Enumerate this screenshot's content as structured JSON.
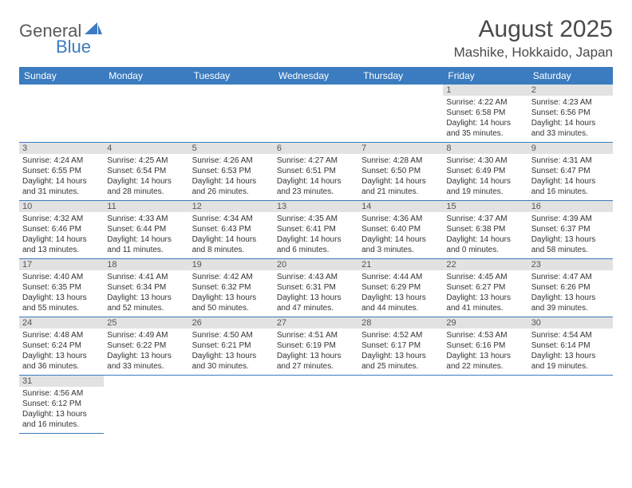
{
  "logo": {
    "text_general": "General",
    "text_blue": "Blue",
    "shape_color": "#3b7bbf"
  },
  "title": "August 2025",
  "location": "Mashike, Hokkaido, Japan",
  "colors": {
    "header_bg": "#3b7bbf",
    "header_fg": "#ffffff",
    "daynum_bg": "#e2e2e2",
    "border": "#3b7bbf",
    "text": "#333333"
  },
  "weekdays": [
    "Sunday",
    "Monday",
    "Tuesday",
    "Wednesday",
    "Thursday",
    "Friday",
    "Saturday"
  ],
  "weeks": [
    [
      null,
      null,
      null,
      null,
      null,
      {
        "d": "1",
        "sr": "Sunrise: 4:22 AM",
        "ss": "Sunset: 6:58 PM",
        "dl1": "Daylight: 14 hours",
        "dl2": "and 35 minutes."
      },
      {
        "d": "2",
        "sr": "Sunrise: 4:23 AM",
        "ss": "Sunset: 6:56 PM",
        "dl1": "Daylight: 14 hours",
        "dl2": "and 33 minutes."
      }
    ],
    [
      {
        "d": "3",
        "sr": "Sunrise: 4:24 AM",
        "ss": "Sunset: 6:55 PM",
        "dl1": "Daylight: 14 hours",
        "dl2": "and 31 minutes."
      },
      {
        "d": "4",
        "sr": "Sunrise: 4:25 AM",
        "ss": "Sunset: 6:54 PM",
        "dl1": "Daylight: 14 hours",
        "dl2": "and 28 minutes."
      },
      {
        "d": "5",
        "sr": "Sunrise: 4:26 AM",
        "ss": "Sunset: 6:53 PM",
        "dl1": "Daylight: 14 hours",
        "dl2": "and 26 minutes."
      },
      {
        "d": "6",
        "sr": "Sunrise: 4:27 AM",
        "ss": "Sunset: 6:51 PM",
        "dl1": "Daylight: 14 hours",
        "dl2": "and 23 minutes."
      },
      {
        "d": "7",
        "sr": "Sunrise: 4:28 AM",
        "ss": "Sunset: 6:50 PM",
        "dl1": "Daylight: 14 hours",
        "dl2": "and 21 minutes."
      },
      {
        "d": "8",
        "sr": "Sunrise: 4:30 AM",
        "ss": "Sunset: 6:49 PM",
        "dl1": "Daylight: 14 hours",
        "dl2": "and 19 minutes."
      },
      {
        "d": "9",
        "sr": "Sunrise: 4:31 AM",
        "ss": "Sunset: 6:47 PM",
        "dl1": "Daylight: 14 hours",
        "dl2": "and 16 minutes."
      }
    ],
    [
      {
        "d": "10",
        "sr": "Sunrise: 4:32 AM",
        "ss": "Sunset: 6:46 PM",
        "dl1": "Daylight: 14 hours",
        "dl2": "and 13 minutes."
      },
      {
        "d": "11",
        "sr": "Sunrise: 4:33 AM",
        "ss": "Sunset: 6:44 PM",
        "dl1": "Daylight: 14 hours",
        "dl2": "and 11 minutes."
      },
      {
        "d": "12",
        "sr": "Sunrise: 4:34 AM",
        "ss": "Sunset: 6:43 PM",
        "dl1": "Daylight: 14 hours",
        "dl2": "and 8 minutes."
      },
      {
        "d": "13",
        "sr": "Sunrise: 4:35 AM",
        "ss": "Sunset: 6:41 PM",
        "dl1": "Daylight: 14 hours",
        "dl2": "and 6 minutes."
      },
      {
        "d": "14",
        "sr": "Sunrise: 4:36 AM",
        "ss": "Sunset: 6:40 PM",
        "dl1": "Daylight: 14 hours",
        "dl2": "and 3 minutes."
      },
      {
        "d": "15",
        "sr": "Sunrise: 4:37 AM",
        "ss": "Sunset: 6:38 PM",
        "dl1": "Daylight: 14 hours",
        "dl2": "and 0 minutes."
      },
      {
        "d": "16",
        "sr": "Sunrise: 4:39 AM",
        "ss": "Sunset: 6:37 PM",
        "dl1": "Daylight: 13 hours",
        "dl2": "and 58 minutes."
      }
    ],
    [
      {
        "d": "17",
        "sr": "Sunrise: 4:40 AM",
        "ss": "Sunset: 6:35 PM",
        "dl1": "Daylight: 13 hours",
        "dl2": "and 55 minutes."
      },
      {
        "d": "18",
        "sr": "Sunrise: 4:41 AM",
        "ss": "Sunset: 6:34 PM",
        "dl1": "Daylight: 13 hours",
        "dl2": "and 52 minutes."
      },
      {
        "d": "19",
        "sr": "Sunrise: 4:42 AM",
        "ss": "Sunset: 6:32 PM",
        "dl1": "Daylight: 13 hours",
        "dl2": "and 50 minutes."
      },
      {
        "d": "20",
        "sr": "Sunrise: 4:43 AM",
        "ss": "Sunset: 6:31 PM",
        "dl1": "Daylight: 13 hours",
        "dl2": "and 47 minutes."
      },
      {
        "d": "21",
        "sr": "Sunrise: 4:44 AM",
        "ss": "Sunset: 6:29 PM",
        "dl1": "Daylight: 13 hours",
        "dl2": "and 44 minutes."
      },
      {
        "d": "22",
        "sr": "Sunrise: 4:45 AM",
        "ss": "Sunset: 6:27 PM",
        "dl1": "Daylight: 13 hours",
        "dl2": "and 41 minutes."
      },
      {
        "d": "23",
        "sr": "Sunrise: 4:47 AM",
        "ss": "Sunset: 6:26 PM",
        "dl1": "Daylight: 13 hours",
        "dl2": "and 39 minutes."
      }
    ],
    [
      {
        "d": "24",
        "sr": "Sunrise: 4:48 AM",
        "ss": "Sunset: 6:24 PM",
        "dl1": "Daylight: 13 hours",
        "dl2": "and 36 minutes."
      },
      {
        "d": "25",
        "sr": "Sunrise: 4:49 AM",
        "ss": "Sunset: 6:22 PM",
        "dl1": "Daylight: 13 hours",
        "dl2": "and 33 minutes."
      },
      {
        "d": "26",
        "sr": "Sunrise: 4:50 AM",
        "ss": "Sunset: 6:21 PM",
        "dl1": "Daylight: 13 hours",
        "dl2": "and 30 minutes."
      },
      {
        "d": "27",
        "sr": "Sunrise: 4:51 AM",
        "ss": "Sunset: 6:19 PM",
        "dl1": "Daylight: 13 hours",
        "dl2": "and 27 minutes."
      },
      {
        "d": "28",
        "sr": "Sunrise: 4:52 AM",
        "ss": "Sunset: 6:17 PM",
        "dl1": "Daylight: 13 hours",
        "dl2": "and 25 minutes."
      },
      {
        "d": "29",
        "sr": "Sunrise: 4:53 AM",
        "ss": "Sunset: 6:16 PM",
        "dl1": "Daylight: 13 hours",
        "dl2": "and 22 minutes."
      },
      {
        "d": "30",
        "sr": "Sunrise: 4:54 AM",
        "ss": "Sunset: 6:14 PM",
        "dl1": "Daylight: 13 hours",
        "dl2": "and 19 minutes."
      }
    ],
    [
      {
        "d": "31",
        "sr": "Sunrise: 4:56 AM",
        "ss": "Sunset: 6:12 PM",
        "dl1": "Daylight: 13 hours",
        "dl2": "and 16 minutes."
      },
      null,
      null,
      null,
      null,
      null,
      null
    ]
  ]
}
